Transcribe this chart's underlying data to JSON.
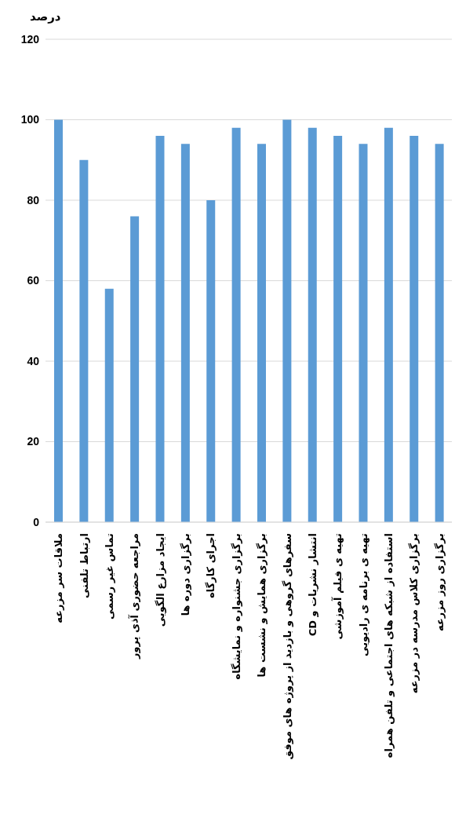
{
  "chart_data": {
    "type": "bar",
    "ylabel": "درصد",
    "categories": [
      "ملاقات سر مزرعه",
      "ارتباط تلفنی",
      "تماس غیر رسمی",
      "مراجعه حضوری آذی پرور",
      "ایجاد مزارع الگویی",
      "برگزاری دوره ها",
      "اجرای کارگاه",
      "برگزاری جشنواره و نمایشگاه",
      "برگزاری همایش و نشست ها",
      "سفرهای گروهی و بازدید از پروژه های موفق",
      "انتشار نشریات و CD",
      "تهیه ی فیلم آموزشی",
      "تهیه ی برنامه ی رادیویی",
      "استفاده از شبکه های اجتماعی و تلفن همراه",
      "برگزاری کلاس مدرسه در مزرعه",
      "برگزاری روز مزرعه"
    ],
    "values": [
      100,
      90,
      58,
      76,
      96,
      94,
      80,
      98,
      94,
      100,
      98,
      96,
      94,
      98,
      96,
      94
    ],
    "color": "#5b9bd5",
    "ylim": [
      0,
      120
    ],
    "yticks": [
      0,
      20,
      40,
      60,
      80,
      100,
      120
    ],
    "grid": "y"
  }
}
